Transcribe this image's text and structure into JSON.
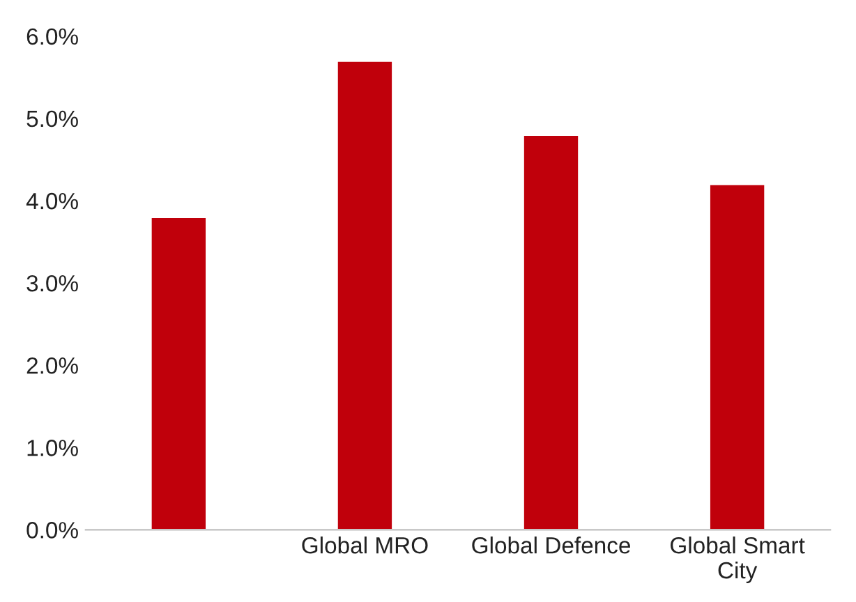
{
  "chart_data": {
    "type": "bar",
    "categories": [
      null,
      "Global MRO",
      "Global Defence",
      "Global Smart City"
    ],
    "values": [
      3.8,
      5.7,
      4.8,
      4.2
    ],
    "color": "#c0000b",
    "ylim": [
      0,
      6
    ],
    "yticks": [
      {
        "value": 0,
        "label": "0.0%"
      },
      {
        "value": 1,
        "label": "1.0%"
      },
      {
        "value": 2,
        "label": "2.0%"
      },
      {
        "value": 3,
        "label": "3.0%"
      },
      {
        "value": 4,
        "label": "4.0%"
      },
      {
        "value": 5,
        "label": "5.0%"
      },
      {
        "value": 6,
        "label": "6.0%"
      }
    ],
    "grid": false,
    "legend": false
  }
}
